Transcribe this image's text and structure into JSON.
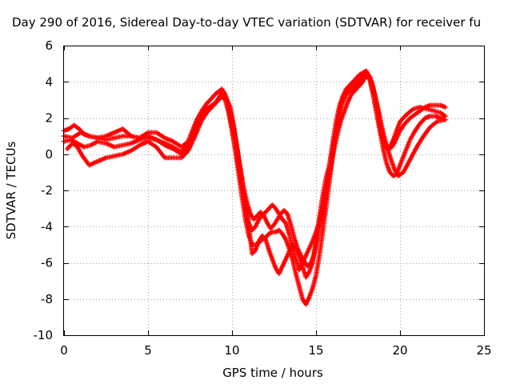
{
  "chart_data": {
    "type": "scatter",
    "title": "Day 290 of 2016, Sidereal Day-to-day VTEC variation (SDTVAR) for receiver fu",
    "xlabel": "GPS time / hours",
    "ylabel": "SDTVAR / TECUs",
    "xlim": [
      0,
      25
    ],
    "ylim": [
      -10,
      6
    ],
    "x_ticks": [
      0,
      5,
      10,
      15,
      20,
      25
    ],
    "y_ticks": [
      -10,
      -8,
      -6,
      -4,
      -2,
      0,
      2,
      4,
      6
    ],
    "grid": true,
    "legend": "none",
    "marker": "plus",
    "color": "#ff0000",
    "series": [
      {
        "x": [
          0.0,
          0.3,
          0.6,
          0.9,
          1.2,
          1.5,
          2.0,
          2.5,
          3.0,
          3.5,
          4.0,
          4.5,
          5.0,
          5.5,
          6.0,
          6.5,
          7.0,
          7.3,
          7.6,
          7.9,
          8.2,
          8.5,
          8.8,
          9.1,
          9.4,
          9.6,
          9.8,
          10.0,
          10.2,
          10.4,
          10.6,
          10.8,
          11.0,
          11.2,
          11.4,
          11.6,
          11.8,
          12.0,
          12.2,
          12.4,
          12.6,
          12.8,
          13.0,
          13.2,
          13.4,
          13.6,
          13.8,
          14.0,
          14.2,
          14.4,
          14.6,
          14.8,
          15.0,
          15.2,
          15.4,
          15.6,
          15.8,
          16.0,
          16.2,
          16.4,
          16.6,
          16.8,
          17.0,
          17.2,
          17.4,
          17.6,
          17.8,
          18.0,
          18.2,
          18.4,
          18.6,
          18.8,
          19.0,
          19.2,
          19.4,
          19.6,
          19.8,
          20.0,
          20.3,
          20.6,
          20.9,
          21.2,
          21.5,
          21.8,
          22.1,
          22.4,
          22.7
        ],
        "y": [
          1.3,
          1.4,
          1.6,
          1.4,
          1.1,
          1.0,
          0.9,
          0.8,
          0.9,
          1.0,
          1.0,
          0.9,
          1.0,
          0.8,
          0.6,
          0.4,
          0.1,
          0.5,
          1.2,
          1.9,
          2.4,
          2.8,
          3.1,
          3.4,
          3.6,
          3.3,
          2.7,
          1.9,
          0.9,
          -0.3,
          -1.6,
          -2.8,
          -3.8,
          -4.2,
          -4.0,
          -3.6,
          -3.4,
          -3.2,
          -3.0,
          -2.8,
          -3.0,
          -3.3,
          -3.6,
          -3.8,
          -4.4,
          -5.2,
          -5.8,
          -6.4,
          -6.0,
          -5.6,
          -5.2,
          -4.8,
          -4.3,
          -3.7,
          -2.9,
          -1.9,
          -0.6,
          0.7,
          1.8,
          2.7,
          3.2,
          3.5,
          3.6,
          3.7,
          3.9,
          4.1,
          4.3,
          4.5,
          4.3,
          3.7,
          2.8,
          1.8,
          0.9,
          0.4,
          0.3,
          0.5,
          0.9,
          1.3,
          1.7,
          2.0,
          2.2,
          2.4,
          2.6,
          2.7,
          2.7,
          2.7,
          2.6
        ]
      },
      {
        "x": [
          0.0,
          0.4,
          0.8,
          1.2,
          1.6,
          2.0,
          2.5,
          3.0,
          3.5,
          4.0,
          4.5,
          5.0,
          5.5,
          6.0,
          6.5,
          7.0,
          7.3,
          7.6,
          7.9,
          8.2,
          8.5,
          8.8,
          9.1,
          9.4,
          9.6,
          9.8,
          10.0,
          10.2,
          10.4,
          10.6,
          10.8,
          11.0,
          11.2,
          11.4,
          11.6,
          11.8,
          12.0,
          12.2,
          12.4,
          12.6,
          12.8,
          13.0,
          13.2,
          13.4,
          13.6,
          13.8,
          14.0,
          14.2,
          14.4,
          14.6,
          14.8,
          15.0,
          15.2,
          15.4,
          15.6,
          15.8,
          16.0,
          16.2,
          16.4,
          16.6,
          16.8,
          17.0,
          17.2,
          17.4,
          17.6,
          17.8,
          18.0,
          18.2,
          18.4,
          18.6,
          18.8,
          19.0,
          19.2,
          19.4,
          19.6,
          19.8,
          20.0,
          20.3,
          20.6,
          20.9,
          21.2,
          21.5,
          21.8,
          22.1,
          22.4,
          22.7
        ],
        "y": [
          0.7,
          0.8,
          0.6,
          0.4,
          0.5,
          0.7,
          0.6,
          0.4,
          0.5,
          0.6,
          0.8,
          0.9,
          0.8,
          0.5,
          0.3,
          0.0,
          0.3,
          0.9,
          1.5,
          2.1,
          2.5,
          2.7,
          2.9,
          3.2,
          3.0,
          2.3,
          1.3,
          0.2,
          -1.1,
          -2.4,
          -3.6,
          -4.5,
          -5.0,
          -5.0,
          -4.9,
          -4.7,
          -4.6,
          -4.4,
          -4.3,
          -4.3,
          -4.2,
          -4.4,
          -4.7,
          -5.2,
          -5.8,
          -6.6,
          -7.3,
          -8.0,
          -8.3,
          -7.9,
          -7.4,
          -6.7,
          -5.6,
          -4.3,
          -2.9,
          -1.5,
          0.0,
          1.3,
          2.3,
          2.9,
          3.3,
          3.5,
          3.6,
          3.8,
          4.0,
          4.2,
          4.4,
          4.1,
          3.3,
          2.3,
          1.3,
          0.3,
          -0.5,
          -1.0,
          -1.2,
          -1.1,
          -0.6,
          0.1,
          0.8,
          1.3,
          1.7,
          2.0,
          2.1,
          2.1,
          2.0,
          1.9
        ]
      },
      {
        "x": [
          0.2,
          0.5,
          0.8,
          1.1,
          1.5,
          2.0,
          2.5,
          3.0,
          3.5,
          4.0,
          4.5,
          5.0,
          5.5,
          6.0,
          6.5,
          7.0,
          7.4,
          7.8,
          8.2,
          8.6,
          9.0,
          9.4,
          9.7,
          10.0,
          10.2,
          10.4,
          10.6,
          10.8,
          11.0,
          11.2,
          11.4,
          11.6,
          11.8,
          12.0,
          12.2,
          12.4,
          12.6,
          12.8,
          13.0,
          13.2,
          13.4,
          13.6,
          13.8,
          14.0,
          14.2,
          14.4,
          14.6,
          14.8,
          15.0,
          15.2,
          15.4,
          15.6,
          15.8,
          16.0,
          16.2,
          16.4,
          16.6,
          16.8,
          17.0,
          17.2,
          17.4,
          17.6,
          17.8,
          18.0,
          18.2,
          18.4,
          18.6,
          18.8,
          19.0,
          19.2,
          19.4,
          19.6,
          19.8,
          20.0,
          20.4,
          20.8,
          21.2,
          21.6,
          22.0,
          22.4,
          22.7
        ],
        "y": [
          0.3,
          0.6,
          0.4,
          -0.1,
          -0.6,
          -0.4,
          -0.2,
          -0.1,
          0.0,
          0.2,
          0.5,
          0.7,
          0.4,
          -0.2,
          -0.2,
          -0.2,
          0.2,
          1.0,
          1.9,
          2.5,
          2.8,
          3.4,
          3.0,
          1.5,
          0.3,
          -0.7,
          -1.8,
          -2.8,
          -4.0,
          -5.5,
          -5.3,
          -4.8,
          -4.5,
          -4.7,
          -5.3,
          -5.8,
          -6.3,
          -6.6,
          -6.2,
          -5.8,
          -5.4,
          -5.0,
          -5.2,
          -5.6,
          -6.2,
          -6.8,
          -6.5,
          -6.0,
          -4.8,
          -3.5,
          -2.3,
          -1.3,
          -0.6,
          0.2,
          1.3,
          2.4,
          3.2,
          3.6,
          3.8,
          4.0,
          4.2,
          4.4,
          4.5,
          4.6,
          4.2,
          3.3,
          2.3,
          1.4,
          0.7,
          0.3,
          0.4,
          0.8,
          1.3,
          1.8,
          2.2,
          2.5,
          2.6,
          2.5,
          2.4,
          2.3,
          2.1
        ]
      },
      {
        "x": [
          0.0,
          0.5,
          1.0,
          1.5,
          2.0,
          2.5,
          3.0,
          3.5,
          4.0,
          4.5,
          5.0,
          5.5,
          6.0,
          6.5,
          7.0,
          7.5,
          8.0,
          8.5,
          9.0,
          9.3,
          9.6,
          9.9,
          10.1,
          10.3,
          10.5,
          10.7,
          10.9,
          11.1,
          11.3,
          11.5,
          11.7,
          11.9,
          12.1,
          12.3,
          12.5,
          12.7,
          12.9,
          13.1,
          13.3,
          13.5,
          13.7,
          13.9,
          14.1,
          14.3,
          14.5,
          14.7,
          14.9,
          15.1,
          15.3,
          15.5,
          15.7,
          15.9,
          16.1,
          16.3,
          16.5,
          16.7,
          16.9,
          17.1,
          17.3,
          17.5,
          17.7,
          17.9,
          18.1,
          18.3,
          18.5,
          18.7,
          18.9,
          19.1,
          19.3,
          19.5,
          19.7,
          19.9,
          20.2,
          20.6,
          21.0,
          21.4,
          21.8,
          22.2,
          22.6
        ],
        "y": [
          1.0,
          0.9,
          1.2,
          1.0,
          0.9,
          1.0,
          1.2,
          1.4,
          1.0,
          0.9,
          1.2,
          1.2,
          0.9,
          0.7,
          0.4,
          0.8,
          1.6,
          2.3,
          2.8,
          3.1,
          3.2,
          2.6,
          1.6,
          0.4,
          -0.8,
          -1.9,
          -2.7,
          -3.3,
          -3.6,
          -3.4,
          -3.2,
          -3.4,
          -3.8,
          -4.1,
          -3.9,
          -3.6,
          -3.3,
          -3.1,
          -3.3,
          -3.9,
          -4.6,
          -5.2,
          -5.6,
          -5.9,
          -6.2,
          -6.0,
          -5.5,
          -4.6,
          -3.6,
          -2.6,
          -1.6,
          -0.6,
          0.4,
          1.2,
          1.9,
          2.4,
          2.9,
          3.3,
          3.5,
          3.7,
          3.9,
          4.2,
          4.4,
          4.0,
          3.3,
          2.5,
          1.6,
          0.8,
          0.2,
          -0.4,
          -0.9,
          -1.2,
          -1.0,
          -0.3,
          0.4,
          1.0,
          1.5,
          1.8,
          1.9
        ]
      }
    ]
  }
}
